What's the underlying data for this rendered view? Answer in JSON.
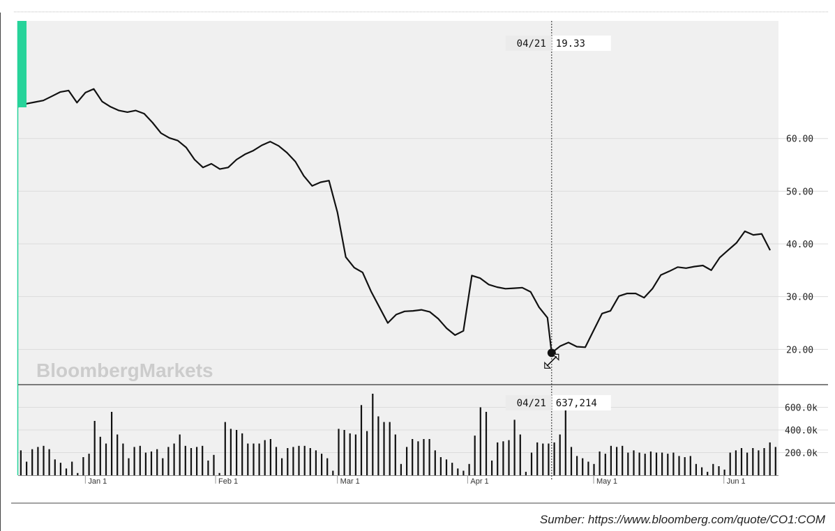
{
  "chart_data": {
    "type": "line",
    "price": {
      "y_ticks": [
        "60.00",
        "50.00",
        "40.00",
        "30.00",
        "20.00"
      ],
      "y_tick_values": [
        60,
        50,
        40,
        30,
        20
      ],
      "ylim": [
        13.3,
        82.3
      ],
      "x": [
        "2015-12-16",
        "2015-12-18",
        "2015-12-20",
        "2015-12-22",
        "2015-12-24",
        "2015-12-26",
        "2015-12-28",
        "2015-12-30",
        "2016-01-01",
        "2016-01-03",
        "2016-01-05",
        "2016-01-07",
        "2016-01-09",
        "2016-01-11",
        "2016-01-13",
        "2016-01-15",
        "2016-01-17",
        "2016-01-19",
        "2016-01-21",
        "2016-01-23",
        "2016-01-25",
        "2016-01-27",
        "2016-01-29",
        "2016-01-31",
        "2016-02-02",
        "2016-02-04",
        "2016-02-06",
        "2016-02-08",
        "2016-02-10",
        "2016-02-12",
        "2016-02-14",
        "2016-02-16",
        "2016-02-18",
        "2016-02-20",
        "2016-02-22",
        "2016-02-24",
        "2016-02-26",
        "2016-02-28",
        "2016-03-01",
        "2016-03-03",
        "2016-03-05",
        "2016-03-07",
        "2016-03-09",
        "2016-03-11",
        "2016-03-13",
        "2016-03-15",
        "2016-03-17",
        "2016-03-19",
        "2016-03-21",
        "2016-03-23",
        "2016-03-25",
        "2016-03-27",
        "2016-03-29",
        "2016-03-31",
        "2016-04-02",
        "2016-04-04",
        "2016-04-06",
        "2016-04-08",
        "2016-04-10",
        "2016-04-12",
        "2016-04-14",
        "2016-04-16",
        "2016-04-18",
        "2016-04-20",
        "2016-04-21",
        "2016-04-23",
        "2016-04-25",
        "2016-04-27",
        "2016-04-29",
        "2016-05-01",
        "2016-05-03",
        "2016-05-05",
        "2016-05-07",
        "2016-05-09",
        "2016-05-11",
        "2016-05-13",
        "2016-05-15",
        "2016-05-17",
        "2016-05-19",
        "2016-05-21",
        "2016-05-23",
        "2016-05-25",
        "2016-05-27",
        "2016-05-29",
        "2016-05-31",
        "2016-06-02",
        "2016-06-04",
        "2016-06-06",
        "2016-06-08",
        "2016-06-10",
        "2016-06-12"
      ],
      "y": [
        66.0,
        66.6,
        66.9,
        67.2,
        68.0,
        68.8,
        69.1,
        66.8,
        68.7,
        69.4,
        67.0,
        66.0,
        65.3,
        65.0,
        65.3,
        64.7,
        63.0,
        61.0,
        60.1,
        59.6,
        58.3,
        56.0,
        54.5,
        55.2,
        54.2,
        54.5,
        56.0,
        57.0,
        57.7,
        58.7,
        59.4,
        58.6,
        57.3,
        55.6,
        52.9,
        51.0,
        51.7,
        52.0,
        46.0,
        37.5,
        35.5,
        34.6,
        31.0,
        28.0,
        25.0,
        26.6,
        27.2,
        27.3,
        27.5,
        27.1,
        25.8,
        24.0,
        22.7,
        23.5,
        34.0,
        33.5,
        32.3,
        31.8,
        31.5,
        31.6,
        31.7,
        30.9,
        28.0,
        26.0,
        19.33,
        20.6,
        21.3,
        20.5,
        20.4,
        23.6,
        26.8,
        27.3,
        30.1,
        30.6,
        30.6,
        29.8,
        31.5,
        34.1,
        34.8,
        35.6,
        35.4,
        35.7,
        35.9,
        35.0,
        37.4,
        38.8,
        40.2,
        42.4,
        41.7,
        41.9,
        38.8
      ],
      "crosshair": {
        "date": "04/21",
        "value": "19.33"
      }
    },
    "volume": {
      "y_ticks": [
        "600.0k",
        "400.0k",
        "200.0k"
      ],
      "y_tick_values": [
        600000,
        400000,
        200000
      ],
      "ylim": [
        0,
        800000
      ],
      "values": [
        220000,
        120000,
        230000,
        250000,
        260000,
        230000,
        140000,
        110000,
        60000,
        120000,
        20000,
        160000,
        190000,
        480000,
        340000,
        280000,
        560000,
        360000,
        280000,
        150000,
        250000,
        260000,
        200000,
        210000,
        230000,
        150000,
        250000,
        280000,
        360000,
        260000,
        240000,
        250000,
        260000,
        130000,
        180000,
        20000,
        470000,
        410000,
        400000,
        370000,
        280000,
        280000,
        280000,
        310000,
        320000,
        250000,
        150000,
        240000,
        250000,
        260000,
        260000,
        240000,
        220000,
        190000,
        150000,
        40000,
        410000,
        400000,
        370000,
        360000,
        620000,
        390000,
        720000,
        520000,
        470000,
        470000,
        360000,
        100000,
        250000,
        320000,
        300000,
        320000,
        320000,
        220000,
        160000,
        140000,
        110000,
        60000,
        40000,
        100000,
        350000,
        600000,
        560000,
        130000,
        290000,
        300000,
        310000,
        490000,
        360000,
        30000,
        200000,
        290000,
        280000,
        280000,
        290000,
        360000,
        637214,
        250000,
        170000,
        150000,
        120000,
        100000,
        210000,
        190000,
        260000,
        250000,
        260000,
        200000,
        220000,
        200000,
        190000,
        210000,
        200000,
        200000,
        190000,
        200000,
        170000,
        160000,
        170000,
        100000,
        70000,
        30000,
        100000,
        80000,
        50000,
        200000,
        220000,
        240000,
        200000,
        240000,
        220000,
        240000,
        290000,
        250000
      ],
      "crosshair": {
        "date": "04/21",
        "value": "637,214"
      }
    },
    "x_ticks": [
      {
        "label": "Jan 1",
        "date": "2016-01-01"
      },
      {
        "label": "Feb 1",
        "date": "2016-02-01"
      },
      {
        "label": "Mar 1",
        "date": "2016-03-01"
      },
      {
        "label": "Apr 1",
        "date": "2016-04-01"
      },
      {
        "label": "May 1",
        "date": "2016-05-01"
      },
      {
        "label": "Jun 1",
        "date": "2016-06-01"
      }
    ],
    "xlim": [
      "2015-12-16",
      "2016-06-14"
    ],
    "grid": true,
    "colors": {
      "line": "#111111",
      "area": "#f0f0f0",
      "accent": "#27d39a",
      "grid": "#dcdcdc"
    }
  },
  "watermark": "BloombergMarkets",
  "source": "Sumber: https://www.bloomberg.com/quote/CO1:COM"
}
